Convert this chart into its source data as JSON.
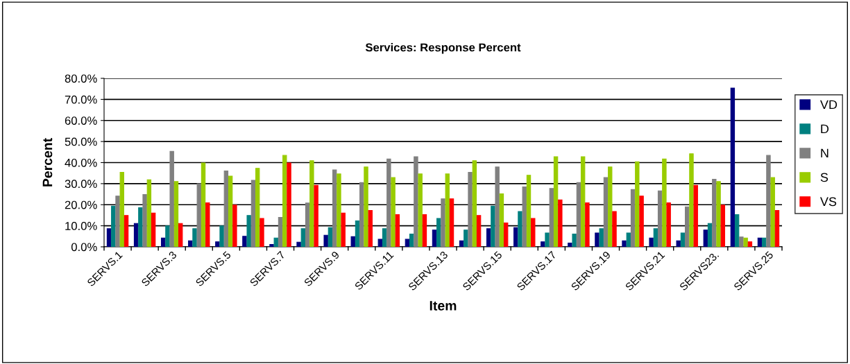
{
  "chart_data": {
    "type": "bar",
    "title": "Services: Response Percent",
    "xlabel": "Item",
    "ylabel": "Percent",
    "categories": [
      "SERVS.1",
      null,
      "SERVS.3",
      null,
      "SERVS.5",
      null,
      "SERVS.7",
      null,
      "SERVS.9",
      null,
      "SERVS.11",
      null,
      "SERVS.13",
      null,
      "SERVS.15",
      null,
      "SERVS.17",
      null,
      "SERVS.19",
      null,
      "SERVS.21",
      null,
      "SERVS23.",
      null,
      "SERVS.25"
    ],
    "series": [
      {
        "name": "VD",
        "color": "#000080",
        "values": [
          8.6,
          11.1,
          4.2,
          2.9,
          2.4,
          5.0,
          1.1,
          2.2,
          5.5,
          4.8,
          3.6,
          3.6,
          8.0,
          2.9,
          8.6,
          9.1,
          2.4,
          1.8,
          6.6,
          2.9,
          4.2,
          2.9,
          8.0,
          75.4,
          4.2
        ]
      },
      {
        "name": "D",
        "color": "#008080",
        "values": [
          19.3,
          18.6,
          9.9,
          8.6,
          9.9,
          14.9,
          4.2,
          8.6,
          9.1,
          12.3,
          8.6,
          6.1,
          13.5,
          8.0,
          19.3,
          16.8,
          6.6,
          6.1,
          8.6,
          6.6,
          8.6,
          6.6,
          11.1,
          15.3,
          4.2
        ]
      },
      {
        "name": "N",
        "color": "#808080",
        "values": [
          24.1,
          24.8,
          45.3,
          29.9,
          36.0,
          31.6,
          14.0,
          20.8,
          36.5,
          30.5,
          41.7,
          42.8,
          22.8,
          35.4,
          37.9,
          28.5,
          27.7,
          30.5,
          32.9,
          27.2,
          26.6,
          19.0,
          32.1,
          4.7,
          43.4
        ]
      },
      {
        "name": "S",
        "color": "#99cc00",
        "values": [
          35.4,
          31.8,
          31.0,
          39.8,
          33.6,
          37.3,
          43.4,
          40.9,
          34.6,
          37.9,
          32.9,
          34.6,
          34.6,
          40.9,
          25.2,
          34.0,
          42.8,
          42.8,
          37.9,
          40.4,
          41.7,
          44.2,
          31.0,
          4.2,
          32.9
        ]
      },
      {
        "name": "VS",
        "color": "#ff0000",
        "values": [
          14.9,
          16.0,
          11.1,
          20.9,
          19.8,
          13.5,
          39.8,
          29.2,
          16.0,
          17.3,
          15.3,
          15.3,
          22.8,
          14.9,
          11.3,
          13.5,
          22.3,
          20.9,
          16.8,
          24.1,
          20.9,
          29.2,
          19.8,
          2.4,
          17.3
        ]
      }
    ],
    "ylim": [
      0,
      80
    ],
    "yticks": [
      {
        "value": 0,
        "label": "0.0%"
      },
      {
        "value": 10,
        "label": "10.0%"
      },
      {
        "value": 20,
        "label": "20.0%"
      },
      {
        "value": 30,
        "label": "30.0%"
      },
      {
        "value": 40,
        "label": "40.0%"
      },
      {
        "value": 50,
        "label": "50.0%"
      },
      {
        "value": 60,
        "label": "60.0%"
      },
      {
        "value": 70,
        "label": "70.0%"
      },
      {
        "value": 80,
        "label": "80.0%"
      }
    ],
    "grid": "y",
    "legend": "right"
  }
}
